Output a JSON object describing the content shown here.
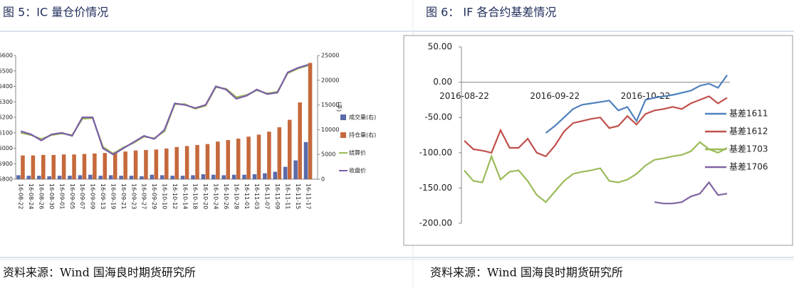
{
  "chart_data": [
    {
      "type": "combo",
      "title": "图 5：IC 量仓价情况",
      "source": "资料来源：Wind 国海良时期货研究所",
      "categories": [
        "16-08-22",
        "16-08-24",
        "16-08-26",
        "16-08-30",
        "16-09-01",
        "16-09-05",
        "16-09-07",
        "16-09-09",
        "16-09-13",
        "16-09-19",
        "16-09-21",
        "16-09-23",
        "16-09-27",
        "16-09-29",
        "16-10-10",
        "16-10-12",
        "16-10-14",
        "16-10-18",
        "16-10-20",
        "16-10-24",
        "16-10-26",
        "16-10-28",
        "16-11-01",
        "16-11-03",
        "16-11-07",
        "16-11-09",
        "16-11-11",
        "16-11-15",
        "16-11-17"
      ],
      "ylim": [
        5800,
        6600
      ],
      "yticks": [
        5800,
        5900,
        6000,
        6100,
        6200,
        6300,
        6400,
        6500,
        6600
      ],
      "y2lim": [
        0,
        25000
      ],
      "y2ticks": [
        0,
        5000,
        10000,
        15000,
        20000,
        25000
      ],
      "y2label": "(手)",
      "legend": "right",
      "series": [
        {
          "name": "成交量(右)",
          "kind": "bar",
          "axis": "y2",
          "color": "#5b6aa8",
          "values": [
            800,
            700,
            700,
            600,
            700,
            700,
            800,
            900,
            700,
            800,
            700,
            700,
            600,
            900,
            800,
            700,
            700,
            800,
            1000,
            900,
            800,
            900,
            900,
            1000,
            1200,
            1500,
            2500,
            3800,
            7500
          ]
        },
        {
          "name": "持仓量(右)",
          "kind": "bar",
          "axis": "y2",
          "color": "#c5693c",
          "values": [
            4800,
            4800,
            4900,
            4900,
            5000,
            5000,
            5100,
            5200,
            5300,
            5500,
            5600,
            5800,
            5900,
            6000,
            6200,
            6500,
            6700,
            6900,
            7100,
            7600,
            7900,
            8200,
            8600,
            9000,
            9600,
            10500,
            12000,
            15500,
            23500
          ]
        },
        {
          "name": "结算价",
          "kind": "line",
          "color": "#9bbb59",
          "values": [
            6100,
            6085,
            6060,
            6085,
            6095,
            6085,
            6190,
            6195,
            6010,
            5965,
            6005,
            6035,
            6075,
            6065,
            6110,
            6285,
            6285,
            6255,
            6275,
            6395,
            6385,
            6330,
            6345,
            6375,
            6355,
            6365,
            6485,
            6515,
            6535
          ]
        },
        {
          "name": "收盘价",
          "kind": "line",
          "color": "#7b5ea7",
          "values": [
            6110,
            6090,
            6050,
            6090,
            6100,
            6080,
            6200,
            6200,
            6000,
            5960,
            6000,
            6040,
            6080,
            6060,
            6120,
            6290,
            6280,
            6260,
            6280,
            6400,
            6380,
            6320,
            6340,
            6380,
            6350,
            6360,
            6490,
            6520,
            6540
          ]
        }
      ]
    },
    {
      "type": "line",
      "title": "图 6：  IF 各合约基差情况",
      "source": "资料来源：Wind 国海良时期货研究所",
      "categories": [
        "2016-08-22",
        null,
        null,
        null,
        null,
        null,
        null,
        null,
        null,
        null,
        "2016-09-22",
        null,
        null,
        null,
        null,
        null,
        null,
        null,
        null,
        null,
        "2016-10-22",
        null,
        null,
        null,
        null,
        null,
        null,
        null,
        null,
        null
      ],
      "ylim": [
        -200,
        50
      ],
      "yticks": [
        {
          "value": -200,
          "label": "-200.00"
        },
        {
          "value": -150,
          "label": "-150.00"
        },
        {
          "value": -100,
          "label": "-100.00"
        },
        {
          "value": -50,
          "label": "-50.00"
        },
        {
          "value": 0,
          "label": "0.00"
        },
        {
          "value": 50,
          "label": "50.00"
        }
      ],
      "legend": "right",
      "series": [
        {
          "name": "基差1611",
          "color": "#4f81bd",
          "values": [
            null,
            null,
            null,
            null,
            null,
            null,
            null,
            null,
            null,
            -72,
            -62,
            -50,
            -38,
            -32,
            -30,
            -28,
            -26,
            -40,
            -35,
            -55,
            -25,
            -22,
            -20,
            -18,
            -15,
            -12,
            -5,
            -2,
            -8,
            10
          ]
        },
        {
          "name": "基差1612",
          "color": "#c0504d",
          "values": [
            -83,
            -95,
            -97,
            -100,
            -68,
            -93,
            -93,
            -80,
            -100,
            -105,
            -90,
            -70,
            -58,
            -55,
            -52,
            -50,
            -65,
            -62,
            -48,
            -60,
            -45,
            -40,
            -38,
            -35,
            -38,
            -30,
            -25,
            -20,
            -30,
            -22
          ]
        },
        {
          "name": "基差1703",
          "color": "#9bbb59",
          "values": [
            -125,
            -140,
            -142,
            -105,
            -138,
            -127,
            -125,
            -140,
            -160,
            -170,
            -155,
            -140,
            -130,
            -127,
            -125,
            -122,
            -140,
            -142,
            -138,
            -130,
            -118,
            -110,
            -108,
            -105,
            -103,
            -98,
            -85,
            -95,
            -100,
            -93
          ]
        },
        {
          "name": "基差1706",
          "color": "#8064a2",
          "values": [
            null,
            null,
            null,
            null,
            null,
            null,
            null,
            null,
            null,
            null,
            null,
            null,
            null,
            null,
            null,
            null,
            null,
            null,
            null,
            null,
            null,
            -170,
            -172,
            -172,
            -170,
            -162,
            -158,
            -142,
            -160,
            -158
          ]
        }
      ]
    }
  ]
}
